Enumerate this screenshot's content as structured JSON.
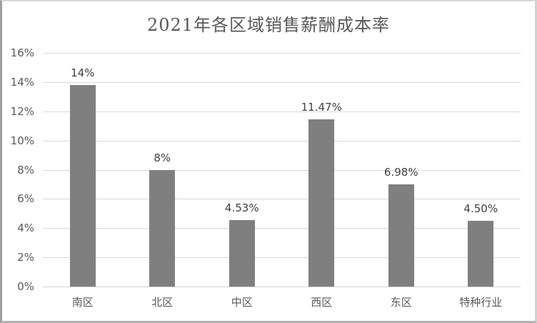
{
  "chart_data": {
    "type": "bar",
    "title": "2021年各区域销售薪酬成本率",
    "categories": [
      "南区",
      "北区",
      "中区",
      "西区",
      "东区",
      "特种行业"
    ],
    "values": [
      13.79,
      8.0,
      4.53,
      11.47,
      6.98,
      4.5
    ],
    "data_labels": [
      "14%",
      "8%",
      "4.53%",
      "11.47%",
      "6.98%",
      "4.50%"
    ],
    "xlabel": "",
    "ylabel": "",
    "ylim": [
      0,
      16
    ],
    "y_ticks": [
      {
        "value": 16,
        "label": "16%"
      },
      {
        "value": 14,
        "label": "14%"
      },
      {
        "value": 12,
        "label": "12%"
      },
      {
        "value": 10,
        "label": "10%"
      },
      {
        "value": 8,
        "label": "8%"
      },
      {
        "value": 6,
        "label": "6%"
      },
      {
        "value": 4,
        "label": "4%"
      },
      {
        "value": 2,
        "label": "2%"
      },
      {
        "value": 0,
        "label": "0%"
      }
    ],
    "grid": true,
    "legend_position": "none",
    "colors": {
      "bar": "#7f7f7f",
      "gridline": "#d9d9d9",
      "axis_line": "#d0d0d0",
      "tick_text": "#595959",
      "data_label_text": "#3f3f3f",
      "title_text": "#595959"
    }
  }
}
